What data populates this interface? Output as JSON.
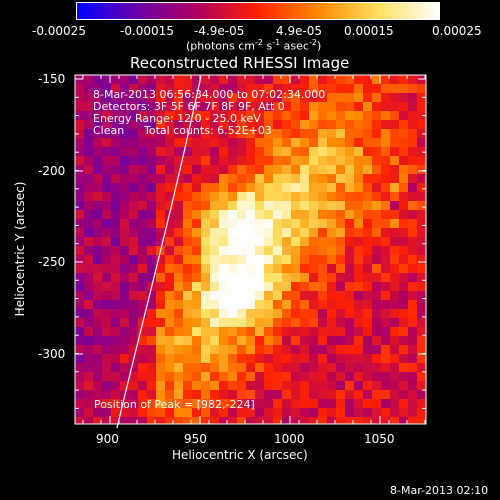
{
  "colorbar": {
    "tick_labels": [
      "-0.00025",
      "-0.00015",
      "-4.9e-05",
      "4.9e-05",
      "0.00015",
      "0.00025"
    ],
    "unit_label": "(photons cm",
    "unit_exp1": "-2",
    "unit_mid": " s",
    "unit_exp2": "-1",
    "unit_mid2": " asec",
    "unit_exp3": "-2",
    "unit_end": ")",
    "colors": [
      "#0000ff",
      "#6a00a8",
      "#b00060",
      "#ff2200",
      "#ff8800",
      "#ffe060",
      "#ffffff"
    ]
  },
  "title": "Reconstructed RHESSI Image",
  "overlay": {
    "time_range": "8-Mar-2013 06:56:34.000 to 07:02:34.000",
    "detectors": "Detectors: 3F 5F 6F 7F 8F 9F, Att 0",
    "energy": "Energy Range: 12.0 - 25.0 keV",
    "method": "Clean",
    "counts": "Total counts: 6.52E+03",
    "peak": "Position of Peak = [982,-224]"
  },
  "axes": {
    "xlabel": "Heliocentric X (arcsec)",
    "ylabel": "Heliocentric Y (arcsec)",
    "xticks": [
      "900",
      "950",
      "1000",
      "1050"
    ],
    "yticks": [
      "-150",
      "-200",
      "-250",
      "-300"
    ]
  },
  "footer_timestamp": "8-Mar-2013 02:10"
}
